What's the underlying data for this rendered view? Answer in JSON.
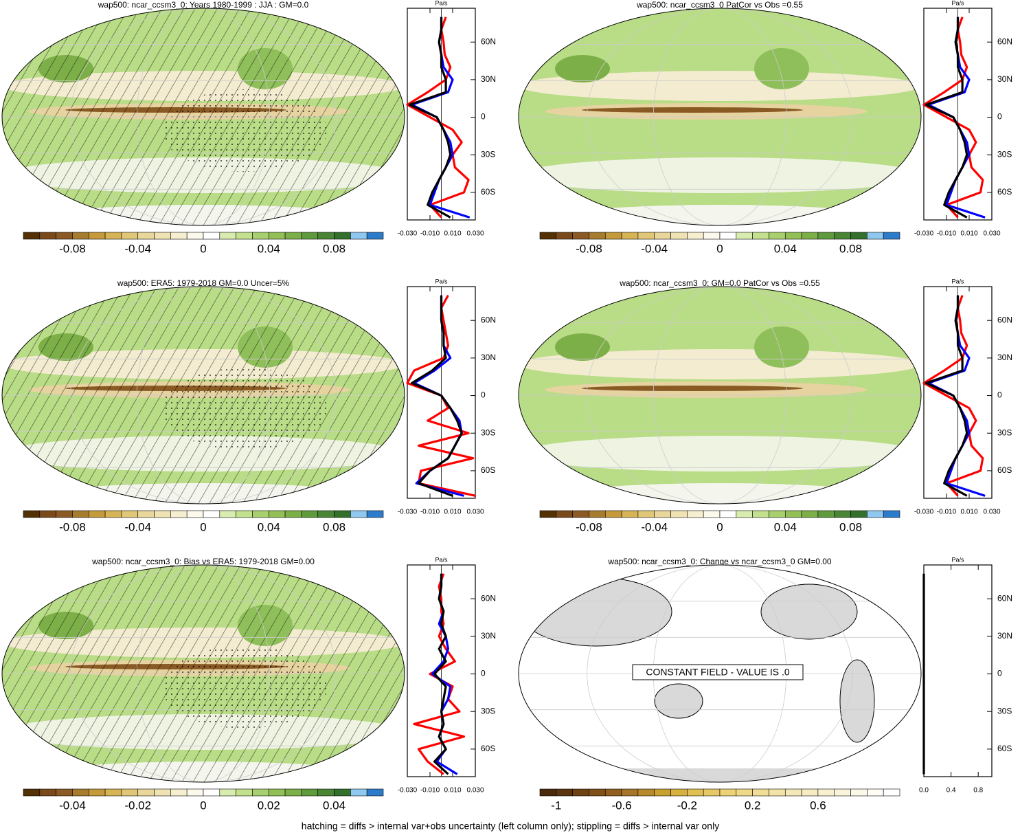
{
  "chart_data": [
    {
      "type": "map_profile",
      "title": "wap500: ncar_ccsm3_0: Years 1980-1999 : JJA : GM=0.0",
      "colorbar": {
        "clim": [
          -0.11,
          0.11
        ],
        "ticks": [
          -0.08,
          -0.04,
          0,
          0.04,
          0.08
        ],
        "colors": [
          "#543005",
          "#7a4a1a",
          "#8c5a25",
          "#a67c2e",
          "#c49a3a",
          "#d6b354",
          "#e0c777",
          "#e8d69a",
          "#efe3b4",
          "#f5eecf",
          "#fbf8ec",
          "#ffffff",
          "#d9ecb0",
          "#c2e08d",
          "#a9d06e",
          "#92c057",
          "#7caf48",
          "#5f9a3d",
          "#4a8535",
          "#33702c",
          "#8ec8ef",
          "#2d7ccc"
        ]
      },
      "hatching": true,
      "profile": {
        "unit": "Pa/s",
        "xlim": [
          -0.03,
          0.03
        ],
        "ylim": [
          -82,
          87
        ],
        "xticks": [
          {
            "value": -0.03,
            "label": "-0.030"
          },
          {
            "value": -0.01,
            "label": "-0.010"
          },
          {
            "value": 0.01,
            "label": "0.010"
          },
          {
            "value": 0.03,
            "label": "0.030"
          }
        ],
        "yticks": [
          {
            "value": 60,
            "label": "60N"
          },
          {
            "value": 30,
            "label": "30N"
          },
          0,
          {
            "value": -30,
            "label": "30S"
          },
          {
            "value": -60,
            "label": "60S"
          }
        ],
        "y": [
          -80,
          -70,
          -60,
          -50,
          -40,
          -30,
          -20,
          -10,
          0,
          10,
          20,
          30,
          40,
          50,
          60,
          70,
          80
        ],
        "series": [
          {
            "color": "#ff0000",
            "values": [
              0.0,
              -0.01,
              0.02,
              0.024,
              0.012,
              0.01,
              0.018,
              0.01,
              -0.01,
              -0.03,
              -0.012,
              0.004,
              0.008,
              0.003,
              0.002,
              0.0,
              0.004
            ]
          },
          {
            "color": "#0000ff",
            "values": [
              0.025,
              -0.01,
              -0.006,
              -0.002,
              0.004,
              0.01,
              0.008,
              0.002,
              -0.004,
              -0.026,
              0.006,
              0.01,
              0.002,
              0.0,
              -0.002,
              0.0,
              0.0
            ]
          },
          {
            "color": "#000000",
            "values": [
              0.008,
              -0.012,
              -0.008,
              -0.002,
              0.004,
              0.008,
              0.006,
              0.002,
              -0.004,
              -0.028,
              0.004,
              0.004,
              0.0,
              0.0,
              -0.002,
              0.0,
              0.0
            ]
          }
        ]
      }
    },
    {
      "type": "map_profile",
      "title": "wap500: ncar_ccsm3_0 PatCor vs Obs =0.55",
      "colorbar": {
        "clim": [
          -0.11,
          0.11
        ],
        "ticks": [
          -0.08,
          -0.04,
          0,
          0.04,
          0.08
        ],
        "colors": [
          "#543005",
          "#7a4a1a",
          "#8c5a25",
          "#a67c2e",
          "#c49a3a",
          "#d6b354",
          "#e0c777",
          "#e8d69a",
          "#efe3b4",
          "#f5eecf",
          "#fbf8ec",
          "#ffffff",
          "#d9ecb0",
          "#c2e08d",
          "#a9d06e",
          "#92c057",
          "#7caf48",
          "#5f9a3d",
          "#4a8535",
          "#33702c",
          "#8ec8ef",
          "#2d7ccc"
        ]
      },
      "hatching": false,
      "profile": {
        "unit": "Pa/s",
        "xlim": [
          -0.03,
          0.03
        ],
        "ylim": [
          -82,
          87
        ],
        "xticks": [
          {
            "value": -0.03,
            "label": "-0.030"
          },
          {
            "value": -0.01,
            "label": "-0.010"
          },
          {
            "value": 0.01,
            "label": "0.010"
          },
          {
            "value": 0.03,
            "label": "0.030"
          }
        ],
        "yticks": [
          {
            "value": 60,
            "label": "60N"
          },
          {
            "value": 30,
            "label": "30N"
          },
          0,
          {
            "value": -30,
            "label": "30S"
          },
          {
            "value": -60,
            "label": "60S"
          }
        ],
        "y": [
          -80,
          -70,
          -60,
          -50,
          -40,
          -30,
          -20,
          -10,
          0,
          10,
          20,
          30,
          40,
          50,
          60,
          70,
          80
        ],
        "series": [
          {
            "color": "#ff0000",
            "values": [
              0.0,
              -0.01,
              0.02,
              0.022,
              0.012,
              0.01,
              0.016,
              0.01,
              -0.01,
              -0.03,
              -0.012,
              0.004,
              0.008,
              0.003,
              0.002,
              0.0,
              0.004
            ]
          },
          {
            "color": "#0000ff",
            "values": [
              0.024,
              -0.01,
              -0.006,
              -0.002,
              0.004,
              0.01,
              0.008,
              0.002,
              -0.004,
              -0.026,
              0.006,
              0.01,
              0.002,
              0.0,
              -0.002,
              0.0,
              0.0
            ]
          },
          {
            "color": "#000000",
            "values": [
              0.008,
              -0.012,
              -0.008,
              -0.002,
              0.004,
              0.008,
              0.006,
              0.002,
              -0.004,
              -0.028,
              0.004,
              0.004,
              0.0,
              0.0,
              -0.002,
              0.0,
              0.0
            ]
          }
        ]
      }
    },
    {
      "type": "map_profile",
      "title": "wap500: ERA5: 1979-2018 GM=0.0 Uncer=5%",
      "colorbar": {
        "clim": [
          -0.11,
          0.11
        ],
        "ticks": [
          -0.08,
          -0.04,
          0,
          0.04,
          0.08
        ],
        "colors": [
          "#543005",
          "#7a4a1a",
          "#8c5a25",
          "#a67c2e",
          "#c49a3a",
          "#d6b354",
          "#e0c777",
          "#e8d69a",
          "#efe3b4",
          "#f5eecf",
          "#fbf8ec",
          "#ffffff",
          "#d9ecb0",
          "#c2e08d",
          "#a9d06e",
          "#92c057",
          "#7caf48",
          "#5f9a3d",
          "#4a8535",
          "#33702c",
          "#8ec8ef",
          "#2d7ccc"
        ]
      },
      "hatching": true,
      "profile": {
        "unit": "Pa/s",
        "xlim": [
          -0.03,
          0.03
        ],
        "ylim": [
          -82,
          87
        ],
        "xticks": [
          {
            "value": -0.03,
            "label": "-0.030"
          },
          {
            "value": -0.01,
            "label": "-0.010"
          },
          {
            "value": 0.01,
            "label": "0.010"
          },
          {
            "value": 0.03,
            "label": "0.030"
          }
        ],
        "yticks": [
          {
            "value": 60,
            "label": "60N"
          },
          {
            "value": 30,
            "label": "30N"
          },
          0,
          {
            "value": -30,
            "label": "30S"
          },
          {
            "value": -60,
            "label": "60S"
          }
        ],
        "y": [
          -80,
          -70,
          -60,
          -50,
          -40,
          -30,
          -20,
          -10,
          0,
          10,
          20,
          30,
          40,
          50,
          60,
          70,
          80
        ],
        "series": [
          {
            "color": "#ff0000",
            "values": [
              0.03,
              -0.02,
              -0.018,
              0.028,
              -0.02,
              0.024,
              -0.012,
              0.006,
              0.0,
              -0.03,
              -0.024,
              0.002,
              0.006,
              0.004,
              0.002,
              0.0,
              0.006
            ]
          },
          {
            "color": "#0000ff",
            "values": [
              0.02,
              -0.022,
              -0.01,
              0.006,
              0.012,
              0.018,
              0.016,
              0.008,
              0.0,
              -0.024,
              -0.006,
              0.008,
              0.002,
              0.002,
              0.0,
              0.0,
              0.0
            ]
          },
          {
            "color": "#000000",
            "values": [
              0.01,
              -0.02,
              -0.01,
              0.006,
              0.012,
              0.018,
              0.014,
              0.008,
              0.0,
              -0.026,
              -0.008,
              0.004,
              0.002,
              0.002,
              0.0,
              0.0,
              0.0
            ]
          }
        ]
      }
    },
    {
      "type": "map_profile",
      "title": "wap500: ncar_ccsm3_0: GM=0.0 PatCor vs Obs =0.55",
      "colorbar": {
        "clim": [
          -0.11,
          0.11
        ],
        "ticks": [
          -0.08,
          -0.04,
          0,
          0.04,
          0.08
        ],
        "colors": [
          "#543005",
          "#7a4a1a",
          "#8c5a25",
          "#a67c2e",
          "#c49a3a",
          "#d6b354",
          "#e0c777",
          "#e8d69a",
          "#efe3b4",
          "#f5eecf",
          "#fbf8ec",
          "#ffffff",
          "#d9ecb0",
          "#c2e08d",
          "#a9d06e",
          "#92c057",
          "#7caf48",
          "#5f9a3d",
          "#4a8535",
          "#33702c",
          "#8ec8ef",
          "#2d7ccc"
        ]
      },
      "hatching": false,
      "profile": {
        "unit": "Pa/s",
        "xlim": [
          -0.03,
          0.03
        ],
        "ylim": [
          -82,
          87
        ],
        "xticks": [
          {
            "value": -0.03,
            "label": "-0.030"
          },
          {
            "value": -0.01,
            "label": "-0.010"
          },
          {
            "value": 0.01,
            "label": "0.010"
          },
          {
            "value": 0.03,
            "label": "0.030"
          }
        ],
        "yticks": [
          {
            "value": 60,
            "label": "60N"
          },
          {
            "value": 30,
            "label": "30N"
          },
          0,
          {
            "value": -30,
            "label": "30S"
          },
          {
            "value": -60,
            "label": "60S"
          }
        ],
        "y": [
          -80,
          -70,
          -60,
          -50,
          -40,
          -30,
          -20,
          -10,
          0,
          10,
          20,
          30,
          40,
          50,
          60,
          70,
          80
        ],
        "series": [
          {
            "color": "#ff0000",
            "values": [
              0.0,
              -0.01,
              0.02,
              0.022,
              0.012,
              0.01,
              0.016,
              0.01,
              -0.01,
              -0.03,
              -0.012,
              0.004,
              0.008,
              0.003,
              0.002,
              0.0,
              0.004
            ]
          },
          {
            "color": "#0000ff",
            "values": [
              0.024,
              -0.01,
              -0.006,
              -0.002,
              0.004,
              0.01,
              0.008,
              0.002,
              -0.004,
              -0.026,
              0.006,
              0.01,
              0.002,
              0.0,
              -0.002,
              0.0,
              0.0
            ]
          },
          {
            "color": "#000000",
            "values": [
              0.008,
              -0.012,
              -0.008,
              -0.002,
              0.004,
              0.008,
              0.006,
              0.002,
              -0.004,
              -0.028,
              0.004,
              0.004,
              0.0,
              0.0,
              -0.002,
              0.0,
              0.0
            ]
          }
        ]
      }
    },
    {
      "type": "map_profile",
      "title": "wap500: ncar_ccsm3_0: Bias vs ERA5: 1979-2018 GM=0.00",
      "colorbar": {
        "clim": [
          -0.055,
          0.055
        ],
        "ticks": [
          -0.04,
          -0.02,
          0,
          0.02,
          0.04
        ],
        "colors": [
          "#543005",
          "#7a4a1a",
          "#8c5a25",
          "#a67c2e",
          "#c49a3a",
          "#d6b354",
          "#e0c777",
          "#e8d69a",
          "#efe3b4",
          "#f5eecf",
          "#fbf8ec",
          "#ffffff",
          "#d9ecb0",
          "#c2e08d",
          "#a9d06e",
          "#92c057",
          "#7caf48",
          "#5f9a3d",
          "#4a8535",
          "#33702c",
          "#8ec8ef",
          "#2d7ccc"
        ]
      },
      "hatching": true,
      "profile": {
        "unit": "Pa/s",
        "xlim": [
          -0.03,
          0.03
        ],
        "ylim": [
          -82,
          87
        ],
        "xticks": [
          {
            "value": -0.03,
            "label": "-0.030"
          },
          {
            "value": -0.01,
            "label": "-0.010"
          },
          {
            "value": 0.01,
            "label": "0.010"
          },
          {
            "value": 0.03,
            "label": "0.030"
          }
        ],
        "yticks": [
          {
            "value": 60,
            "label": "60N"
          },
          {
            "value": 30,
            "label": "30N"
          },
          0,
          {
            "value": -30,
            "label": "30S"
          },
          {
            "value": -60,
            "label": "60S"
          }
        ],
        "y": [
          -80,
          -70,
          -60,
          -50,
          -40,
          -30,
          -20,
          -10,
          0,
          10,
          20,
          30,
          40,
          50,
          60,
          70,
          80
        ],
        "series": [
          {
            "color": "#ff0000",
            "values": [
              0.002,
              -0.012,
              -0.02,
              0.02,
              -0.024,
              0.016,
              0.006,
              0.01,
              -0.01,
              0.012,
              0.004,
              -0.002,
              0.002,
              0.0,
              0.0,
              -0.002,
              0.002
            ]
          },
          {
            "color": "#0000ff",
            "values": [
              0.014,
              -0.004,
              0.004,
              -0.002,
              0.002,
              0.0,
              0.006,
              0.008,
              -0.008,
              0.002,
              0.006,
              0.004,
              -0.002,
              0.002,
              -0.002,
              0.0,
              0.0
            ]
          },
          {
            "color": "#000000",
            "values": [
              0.006,
              -0.006,
              0.004,
              -0.002,
              0.002,
              0.0,
              0.002,
              0.004,
              -0.006,
              0.004,
              -0.002,
              0.004,
              0.0,
              0.002,
              -0.002,
              0.0,
              0.0
            ]
          }
        ]
      }
    },
    {
      "type": "map_profile",
      "title": "wap500: ncar_ccsm3_0: Change vs ncar_ccsm3_0 GM=0.00",
      "annotation": "CONSTANT FIELD - VALUE IS .0",
      "colorbar": {
        "clim": [
          -1.1,
          1.1
        ],
        "ticks": [
          -1,
          -0.6,
          -0.2,
          0.2,
          0.6
        ],
        "colors": [
          "#4a2a0c",
          "#5c3510",
          "#6e4214",
          "#805018",
          "#92601c",
          "#a67528",
          "#b88a2e",
          "#c9a032",
          "#d6b040",
          "#e0bf55",
          "#e6c966",
          "#ebd277",
          "#eed988",
          "#f0de98",
          "#f2e3a8",
          "#f4e8b8",
          "#f6ecc4",
          "#f8f0d0",
          "#faf4dc",
          "#fcf8e8",
          "#fefcf4",
          "#ffffff"
        ]
      },
      "hatching": false,
      "profile": {
        "unit": "Pa/s",
        "xlim": [
          0,
          1
        ],
        "ylim": [
          -82,
          87
        ],
        "xticks": [
          {
            "value": 0,
            "label": "0.0"
          },
          {
            "value": 0.4,
            "label": "0.4"
          },
          {
            "value": 0.8,
            "label": "0.8"
          }
        ],
        "yticks": [
          {
            "value": 60,
            "label": "60N"
          },
          {
            "value": 30,
            "label": "30N"
          },
          0,
          {
            "value": -30,
            "label": "30S"
          },
          {
            "value": -60,
            "label": "60S"
          }
        ],
        "y": [
          -80,
          -70,
          -60,
          -50,
          -40,
          -30,
          -20,
          -10,
          0,
          10,
          20,
          30,
          40,
          50,
          60,
          70,
          80
        ],
        "series": [
          {
            "color": "#000000",
            "values": [
              0,
              0,
              0,
              0,
              0,
              0,
              0,
              0,
              0,
              0,
              0,
              0,
              0,
              0,
              0,
              0,
              0
            ]
          }
        ]
      }
    }
  ],
  "footer": "hatching = diffs > internal var+obs uncertainty (left column only); stippling = diffs > internal var only"
}
